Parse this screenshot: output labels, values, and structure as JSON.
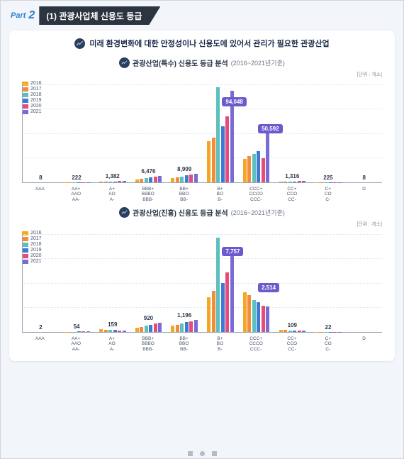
{
  "header": {
    "part_label": "Part",
    "part_number": "2",
    "section_title": "(1) 관광사업체 신용도 등급"
  },
  "card": {
    "title": "미래 환경변화에 대한 안정성이나 신용도에 있어서 관리가 필요한 관광산업"
  },
  "colors": {
    "years": {
      "2016": "#f5a623",
      "2017": "#f08c3a",
      "2018": "#5bc0be",
      "2019": "#3a7bd5",
      "2020": "#e84a7a",
      "2021": "#7a6bd4"
    },
    "callout_bg": "#6a5acd",
    "grid": "#dde3eb",
    "axis": "#9aa5b5"
  },
  "legend_years": [
    "2016",
    "2017",
    "2018",
    "2019",
    "2020",
    "2021"
  ],
  "chart1": {
    "subtitle": "관광산업(특수) 신용도 등급 분석",
    "period": "(2016~2021년기준)",
    "unit": "[단위 : 개소]",
    "ymax": 100000,
    "grid_steps": 4,
    "categories": [
      {
        "lines": [
          "AAA"
        ],
        "label_value": "8",
        "callout": null,
        "bars": {
          "2016": 4,
          "2017": 5,
          "2018": 6,
          "2019": 7,
          "2020": 7,
          "2021": 8
        }
      },
      {
        "lines": [
          "AA+",
          "AAO",
          "AA-"
        ],
        "label_value": "222",
        "callout": null,
        "bars": {
          "2016": 110,
          "2017": 140,
          "2018": 160,
          "2019": 180,
          "2020": 200,
          "2021": 222
        }
      },
      {
        "lines": [
          "A+",
          "AO",
          "A-"
        ],
        "label_value": "1,382",
        "callout": null,
        "bars": {
          "2016": 650,
          "2017": 800,
          "2018": 950,
          "2019": 1100,
          "2020": 1250,
          "2021": 1382
        }
      },
      {
        "lines": [
          "BBB+",
          "BBBO",
          "BBB-"
        ],
        "label_value": "6,476",
        "callout": null,
        "bars": {
          "2016": 3000,
          "2017": 3700,
          "2018": 4400,
          "2019": 5100,
          "2020": 5800,
          "2021": 6476
        }
      },
      {
        "lines": [
          "BB+",
          "BBO",
          "BB-"
        ],
        "label_value": "8,909",
        "callout": null,
        "bars": {
          "2016": 4500,
          "2017": 5300,
          "2018": 6100,
          "2019": 7000,
          "2020": 7900,
          "2021": 8909
        }
      },
      {
        "lines": [
          "B+",
          "BO",
          "B-"
        ],
        "label_value": null,
        "callout": "94,048",
        "bars": {
          "2016": 42000,
          "2017": 46000,
          "2018": 98000,
          "2019": 58000,
          "2020": 68000,
          "2021": 94048
        }
      },
      {
        "lines": [
          "CCC+",
          "CCCO",
          "CCC-"
        ],
        "label_value": null,
        "callout": "50,592",
        "bars": {
          "2016": 24000,
          "2017": 27000,
          "2018": 29000,
          "2019": 32000,
          "2020": 25000,
          "2021": 50592
        }
      },
      {
        "lines": [
          "CC+",
          "CCO",
          "CC-"
        ],
        "label_value": "1,316",
        "callout": null,
        "bars": {
          "2016": 750,
          "2017": 850,
          "2018": 950,
          "2019": 1080,
          "2020": 1200,
          "2021": 1316
        }
      },
      {
        "lines": [
          "C+",
          "CO",
          "C-"
        ],
        "label_value": "225",
        "callout": null,
        "bars": {
          "2016": 100,
          "2017": 130,
          "2018": 150,
          "2019": 170,
          "2020": 200,
          "2021": 225
        }
      },
      {
        "lines": [
          "D"
        ],
        "label_value": "8",
        "callout": null,
        "bars": {
          "2016": 4,
          "2017": 5,
          "2018": 5,
          "2019": 6,
          "2020": 7,
          "2021": 8
        }
      }
    ]
  },
  "chart2": {
    "subtitle": "관광산업(진흥) 신용도 등급 분석",
    "period": "(2016~2021년기준)",
    "unit": "[단위 : 개소]",
    "ymax": 9500,
    "grid_steps": 4,
    "categories": [
      {
        "lines": [
          "AAA"
        ],
        "label_value": "2",
        "callout": null,
        "bars": {
          "2016": 1,
          "2017": 1,
          "2018": 1,
          "2019": 2,
          "2020": 2,
          "2021": 2
        }
      },
      {
        "lines": [
          "AA+",
          "AAO",
          "AA-"
        ],
        "label_value": "54",
        "callout": null,
        "bars": {
          "2016": 25,
          "2017": 30,
          "2018": 35,
          "2019": 42,
          "2020": 48,
          "2021": 54
        }
      },
      {
        "lines": [
          "A+",
          "AO",
          "A-"
        ],
        "label_value": "159",
        "callout": null,
        "bars": {
          "2016": 260,
          "2017": 230,
          "2018": 205,
          "2019": 180,
          "2020": 165,
          "2021": 159
        }
      },
      {
        "lines": [
          "BBB+",
          "BBBO",
          "BBB-"
        ],
        "label_value": "920",
        "callout": null,
        "bars": {
          "2016": 420,
          "2017": 520,
          "2018": 620,
          "2019": 720,
          "2020": 820,
          "2021": 920
        }
      },
      {
        "lines": [
          "BB+",
          "BBO",
          "BB-"
        ],
        "label_value": "1,196",
        "callout": null,
        "bars": {
          "2016": 600,
          "2017": 720,
          "2018": 830,
          "2019": 940,
          "2020": 1060,
          "2021": 1196
        }
      },
      {
        "lines": [
          "B+",
          "BO",
          "B-"
        ],
        "label_value": null,
        "callout": "7,757",
        "bars": {
          "2016": 3400,
          "2017": 4000,
          "2018": 9200,
          "2019": 4800,
          "2020": 5800,
          "2021": 7757
        }
      },
      {
        "lines": [
          "CCC+",
          "CCCO",
          "CCC-"
        ],
        "label_value": null,
        "callout": "2,514",
        "bars": {
          "2016": 3900,
          "2017": 3600,
          "2018": 3100,
          "2019": 2900,
          "2020": 2600,
          "2021": 2514
        }
      },
      {
        "lines": [
          "CC+",
          "CCO",
          "CC-"
        ],
        "label_value": "109",
        "callout": null,
        "bars": {
          "2016": 210,
          "2017": 190,
          "2018": 165,
          "2019": 145,
          "2020": 125,
          "2021": 109
        }
      },
      {
        "lines": [
          "C+",
          "CO",
          "C-"
        ],
        "label_value": "22",
        "callout": null,
        "bars": {
          "2016": 12,
          "2017": 15,
          "2018": 17,
          "2019": 18,
          "2020": 20,
          "2021": 22
        }
      },
      {
        "lines": [
          "D"
        ],
        "label_value": "",
        "callout": null,
        "bars": {
          "2016": 0,
          "2017": 0,
          "2018": 0,
          "2019": 0,
          "2020": 0,
          "2021": 0
        }
      }
    ]
  }
}
